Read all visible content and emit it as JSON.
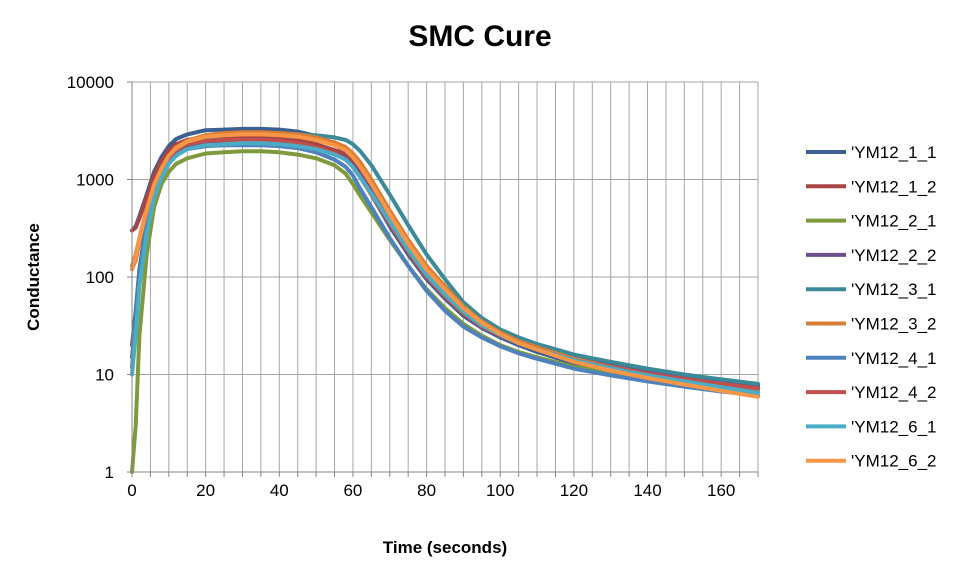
{
  "chart_data": {
    "type": "line",
    "title": "SMC Cure",
    "xlabel": "Time (seconds)",
    "ylabel": "Conductance",
    "xlim": [
      0,
      170
    ],
    "ylim": [
      1,
      10000
    ],
    "y_scale": "log",
    "x_ticks": [
      0,
      20,
      40,
      60,
      80,
      100,
      120,
      140,
      160
    ],
    "x_tick_labels": [
      "0",
      "20",
      "40",
      "60",
      "80",
      "100",
      "120",
      "140",
      "160"
    ],
    "y_ticks": [
      1,
      10,
      100,
      1000,
      10000
    ],
    "y_tick_labels": [
      "1",
      "10",
      "100",
      "1000",
      "10000"
    ],
    "x_gridlines": "every 5 seconds",
    "y_gridlines": "major decades",
    "legend_position": "right",
    "x": [
      0,
      1,
      2,
      4,
      6,
      8,
      10,
      12,
      15,
      20,
      25,
      30,
      35,
      40,
      45,
      50,
      55,
      58,
      60,
      62,
      65,
      70,
      75,
      80,
      85,
      90,
      95,
      100,
      105,
      110,
      120,
      130,
      140,
      150,
      160,
      170
    ],
    "series": [
      {
        "name": "'YM12_1_1",
        "color": "#3b5f91",
        "values": [
          300,
          330,
          420,
          700,
          1200,
          1700,
          2200,
          2600,
          2900,
          3200,
          3250,
          3300,
          3300,
          3250,
          3100,
          2800,
          2300,
          1900,
          1500,
          1100,
          700,
          330,
          170,
          95,
          60,
          40,
          30,
          24,
          20,
          17,
          13,
          11,
          9.5,
          8.3,
          7.4,
          6.8
        ]
      },
      {
        "name": "'YM12_1_2",
        "color": "#a84543",
        "values": [
          300,
          320,
          400,
          650,
          1100,
          1550,
          2000,
          2300,
          2550,
          2700,
          2750,
          2750,
          2750,
          2700,
          2550,
          2300,
          2000,
          1800,
          1550,
          1250,
          850,
          420,
          220,
          125,
          80,
          52,
          37,
          28,
          23,
          20,
          15.5,
          13,
          11,
          9.8,
          8.7,
          7.8
        ]
      },
      {
        "name": "'YM12_2_1",
        "color": "#7f9a3c",
        "values": [
          1,
          3,
          25,
          170,
          520,
          900,
          1200,
          1450,
          1650,
          1850,
          1900,
          1950,
          1950,
          1900,
          1800,
          1650,
          1400,
          1150,
          900,
          680,
          460,
          240,
          130,
          75,
          48,
          33,
          25,
          20,
          17,
          15,
          12,
          10.5,
          9.2,
          8.2,
          7.3,
          6.6
        ]
      },
      {
        "name": "'YM12_2_2",
        "color": "#6a4f8a",
        "values": [
          20,
          45,
          120,
          380,
          800,
          1250,
          1650,
          1950,
          2150,
          2300,
          2350,
          2350,
          2350,
          2300,
          2200,
          2050,
          1850,
          1650,
          1400,
          1100,
          750,
          380,
          200,
          110,
          70,
          45,
          33,
          26,
          22,
          19,
          15,
          12.5,
          10.8,
          9.5,
          8.4,
          7.5
        ]
      },
      {
        "name": "'YM12_3_1",
        "color": "#3b8a98",
        "values": [
          15,
          40,
          110,
          360,
          780,
          1200,
          1650,
          2000,
          2350,
          2700,
          2850,
          2950,
          2950,
          2950,
          2900,
          2850,
          2700,
          2550,
          2300,
          1950,
          1400,
          700,
          340,
          170,
          95,
          55,
          38,
          29,
          24,
          20.5,
          16,
          13.5,
          11.5,
          10,
          8.9,
          8
        ]
      },
      {
        "name": "'YM12_3_2",
        "color": "#d97d35",
        "values": [
          130,
          170,
          250,
          500,
          900,
          1300,
          1750,
          2150,
          2500,
          2850,
          3000,
          3050,
          3050,
          3000,
          2900,
          2700,
          2400,
          2150,
          1850,
          1500,
          1000,
          480,
          240,
          130,
          80,
          50,
          35,
          27,
          22,
          19,
          14.5,
          12,
          10.2,
          8.9,
          7.8,
          6.9
        ]
      },
      {
        "name": "'YM12_4_1",
        "color": "#4f81bd",
        "values": [
          12,
          30,
          90,
          300,
          680,
          1100,
          1500,
          1800,
          2050,
          2200,
          2250,
          2250,
          2250,
          2200,
          2100,
          1900,
          1600,
          1350,
          1100,
          800,
          520,
          250,
          130,
          72,
          45,
          31,
          24,
          19.5,
          16.5,
          14.5,
          11.5,
          9.8,
          8.5,
          7.5,
          6.7,
          6.1
        ]
      },
      {
        "name": "'YM12_4_2",
        "color": "#c0504d",
        "values": [
          120,
          150,
          230,
          480,
          880,
          1280,
          1700,
          2000,
          2300,
          2500,
          2550,
          2550,
          2550,
          2500,
          2350,
          2150,
          1850,
          1600,
          1350,
          1050,
          700,
          350,
          180,
          100,
          63,
          42,
          31,
          25,
          21,
          18,
          14,
          11.8,
          10.2,
          9,
          8,
          7.2
        ]
      },
      {
        "name": "'YM12_6_1",
        "color": "#4bacc6",
        "values": [
          10,
          25,
          80,
          280,
          650,
          1050,
          1450,
          1750,
          2050,
          2250,
          2300,
          2350,
          2350,
          2300,
          2200,
          2050,
          1800,
          1600,
          1350,
          1050,
          720,
          370,
          190,
          105,
          66,
          44,
          32,
          25.5,
          21,
          18,
          14,
          11.6,
          9.8,
          8.5,
          7.4,
          6.5
        ]
      },
      {
        "name": "'YM12_6_2",
        "color": "#f79646",
        "values": [
          120,
          160,
          240,
          480,
          880,
          1300,
          1750,
          2100,
          2450,
          2750,
          2850,
          2900,
          2900,
          2850,
          2750,
          2550,
          2250,
          2000,
          1700,
          1350,
          900,
          440,
          220,
          120,
          75,
          48,
          34,
          26,
          21,
          18,
          13.5,
          11,
          9.2,
          7.9,
          6.8,
          5.9
        ]
      }
    ]
  }
}
